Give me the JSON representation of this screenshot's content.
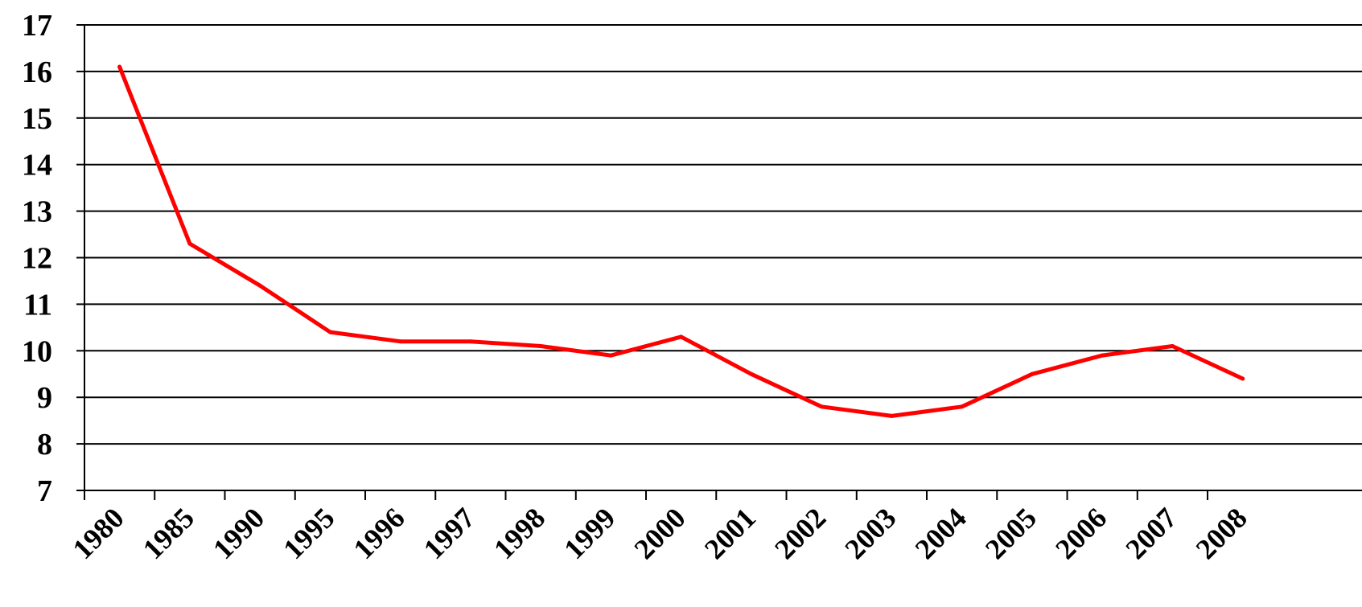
{
  "chart_data": {
    "type": "line",
    "title": "",
    "xlabel": "",
    "ylabel": "",
    "ylim": [
      7,
      17
    ],
    "y_ticks": [
      "7",
      "8",
      "9",
      "10",
      "11",
      "12",
      "13",
      "14",
      "15",
      "16",
      "17"
    ],
    "categories": [
      "1980",
      "1985",
      "1990",
      "1995",
      "1996",
      "1997",
      "1998",
      "1999",
      "2000",
      "2001",
      "2002",
      "2003",
      "2004",
      "2005",
      "2006",
      "2007",
      "2008"
    ],
    "series": [
      {
        "values": [
          16.1,
          12.3,
          11.4,
          10.4,
          10.2,
          10.2,
          10.1,
          9.9,
          10.3,
          9.5,
          8.8,
          8.6,
          8.8,
          9.5,
          9.9,
          10.1,
          9.4
        ]
      }
    ],
    "grid": true,
    "legend": "none",
    "colors": {
      "line": "#ff0000",
      "grid": "#000000",
      "axis": "#000000"
    }
  }
}
